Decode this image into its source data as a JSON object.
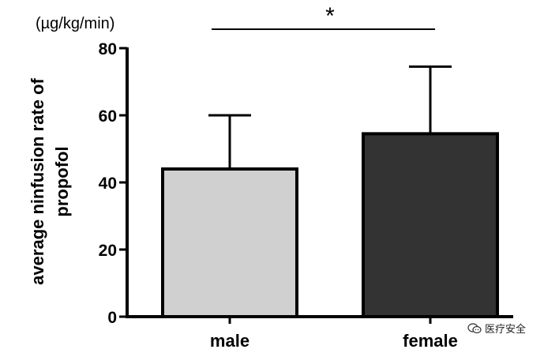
{
  "chart_data": {
    "type": "bar",
    "title": "",
    "unit_label": "(µg/kg/min)",
    "ylabel_lines": [
      "average ninfusion rate of",
      "propofol"
    ],
    "xlabel": "",
    "categories": [
      "male",
      "female"
    ],
    "values": [
      44,
      54.5
    ],
    "error_upper": [
      60,
      74.5
    ],
    "bar_colors": [
      "#d0d0d0",
      "#333333"
    ],
    "ylim": [
      0,
      80
    ],
    "yticks": [
      0,
      20,
      40,
      60,
      80
    ],
    "significance": {
      "between": [
        "male",
        "female"
      ],
      "label": "*"
    }
  },
  "watermark": {
    "text": "医疗安全"
  }
}
